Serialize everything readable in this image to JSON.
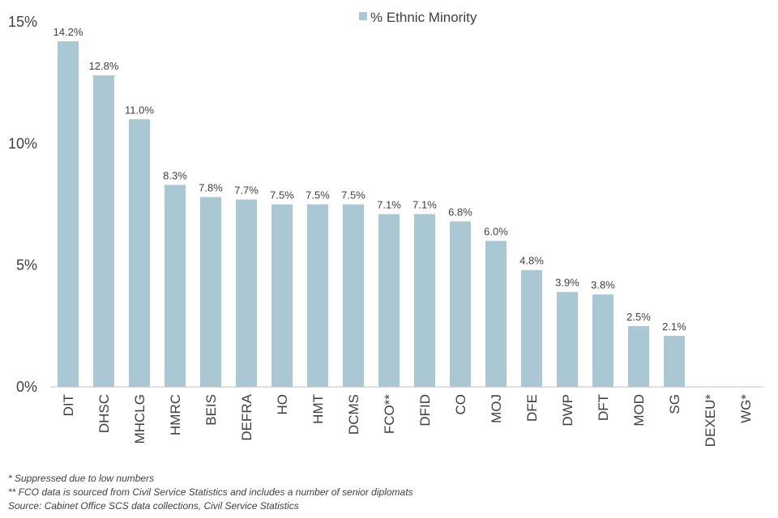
{
  "chart_data": {
    "type": "bar",
    "title": "",
    "xlabel": "",
    "ylabel": "",
    "categories": [
      "DIT",
      "DHSC",
      "MHCLG",
      "HMRC",
      "BEIS",
      "DEFRA",
      "HO",
      "HMT",
      "DCMS",
      "FCO**",
      "DFID",
      "CO",
      "MOJ",
      "DFE",
      "DWP",
      "DFT",
      "MOD",
      "SG",
      "DEXEU*",
      "WG*"
    ],
    "series": [
      {
        "name": "% Ethnic Minority",
        "values": [
          14.2,
          12.8,
          11.0,
          8.3,
          7.8,
          7.7,
          7.5,
          7.5,
          7.5,
          7.1,
          7.1,
          6.8,
          6.0,
          4.8,
          3.9,
          3.8,
          2.5,
          2.1,
          null,
          null
        ],
        "data_labels": [
          "14.2%",
          "12.8%",
          "11.0%",
          "8.3%",
          "7.8%",
          "7.7%",
          "7.5%",
          "7.5%",
          "7.5%",
          "7.1%",
          "7.1%",
          "6.8%",
          "6.0%",
          "4.8%",
          "3.9%",
          "3.8%",
          "2.5%",
          "2.1%",
          "",
          ""
        ],
        "color": "#a9c8d3"
      }
    ],
    "ylim": [
      0,
      15
    ],
    "yticks": [
      0,
      5,
      10,
      15
    ],
    "ytick_labels": [
      "0%",
      "5%",
      "10%",
      "15%"
    ],
    "grid": false,
    "legend_position": "top-center"
  },
  "footnotes": [
    "* Suppressed due to low numbers",
    "** FCO data is sourced from Civil Service Statistics and includes a number of senior diplomats",
    "Source: Cabinet Office SCS data collections, Civil Service Statistics"
  ]
}
